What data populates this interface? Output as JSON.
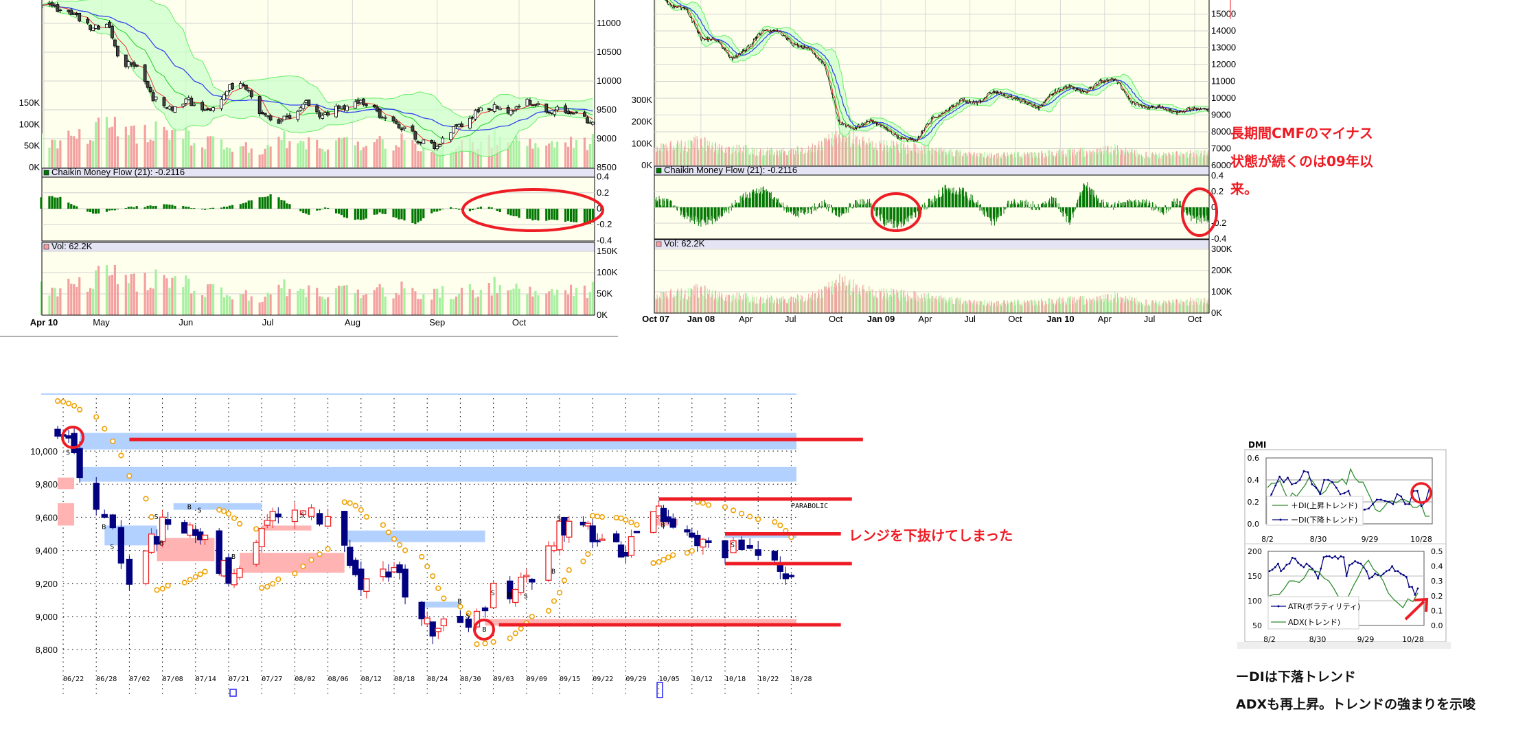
{
  "colors": {
    "annotation_red": "#ee1c24",
    "cmf_green": "#007700",
    "vol_up": "#a6f0a0",
    "vol_down": "#f4a0a0",
    "panel_bg": "#ffffee",
    "header_bg": "#e4e4f4",
    "band_green": "#ccffcc",
    "ma_red": "#ee3333",
    "ma_green": "#22cc22",
    "ma_blue": "#3344ee",
    "candle_down_navy": "#000080",
    "sar_orange": "#f0a000",
    "zone_blue": "#b3d1ff",
    "zone_pink": "#ffb3b3"
  },
  "annotations": {
    "cmf_note": [
      "長期間CMFのマイナス",
      "状態が続くのは09年以",
      "来。"
    ],
    "range_note": "レンジを下抜けてしまった",
    "dmi_note_1": "ーDIは下落トレンド",
    "dmi_note_2": "ADXも再上昇。トレンドの強まりを示唆"
  },
  "chart_data": [
    {
      "type": "candlestick",
      "panel": "6-month daily",
      "cmf_header": "Chaikin Money Flow (21): -0.2116",
      "vol_header": "Vol: 62.2K",
      "x_ticks": [
        "Apr 10",
        "May",
        "Jun",
        "Jul",
        "Aug",
        "Sep",
        "Oct"
      ],
      "x_tick_dates": [
        "2010-04-10",
        "2010-05-01",
        "2010-06-01",
        "2010-07-01",
        "2010-08-01",
        "2010-09-01",
        "2010-10-01"
      ],
      "price_ticks": [
        "11000",
        "10500",
        "10000",
        "9500",
        "9000",
        "8500"
      ],
      "overlay_vol_ticks": [
        "150K",
        "100K",
        "50K",
        "0K"
      ],
      "cmf_ticks": [
        "0.4",
        "0.2",
        "0",
        "-0.2",
        "-0.4"
      ],
      "vol_ticks": [
        "150K",
        "100K",
        "50K",
        "0K"
      ],
      "price_range": [
        8500,
        11400
      ],
      "close_path": [
        [
          "2010-04-12",
          11300
        ],
        [
          "2010-04-20",
          11200
        ],
        [
          "2010-04-27",
          10900
        ],
        [
          "2010-05-04",
          10950
        ],
        [
          "2010-05-07",
          10400
        ],
        [
          "2010-05-14",
          10200
        ],
        [
          "2010-05-20",
          9700
        ],
        [
          "2010-05-26",
          9500
        ],
        [
          "2010-06-01",
          9700
        ],
        [
          "2010-06-08",
          9450
        ],
        [
          "2010-06-15",
          9800
        ],
        [
          "2010-06-21",
          10000
        ],
        [
          "2010-06-25",
          9700
        ],
        [
          "2010-06-30",
          9350
        ],
        [
          "2010-07-05",
          9250
        ],
        [
          "2010-07-09",
          9400
        ],
        [
          "2010-07-15",
          9650
        ],
        [
          "2010-07-20",
          9350
        ],
        [
          "2010-07-26",
          9500
        ],
        [
          "2010-08-03",
          9650
        ],
        [
          "2010-08-09",
          9550
        ],
        [
          "2010-08-13",
          9300
        ],
        [
          "2010-08-20",
          9200
        ],
        [
          "2010-08-26",
          8950
        ],
        [
          "2010-08-31",
          8850
        ],
        [
          "2010-09-06",
          9150
        ],
        [
          "2010-09-10",
          9200
        ],
        [
          "2010-09-15",
          9450
        ],
        [
          "2010-09-22",
          9550
        ],
        [
          "2010-09-29",
          9450
        ],
        [
          "2010-10-05",
          9650
        ],
        [
          "2010-10-12",
          9500
        ],
        [
          "2010-10-20",
          9450
        ],
        [
          "2010-10-28",
          9250
        ]
      ],
      "cmf_weekly": [
        0.15,
        0.15,
        0.02,
        -0.07,
        -0.02,
        0.02,
        0.03,
        0.05,
        0.03,
        -0.01,
        0.01,
        0.05,
        0.12,
        0.18,
        0.05,
        -0.08,
        0.02,
        -0.1,
        -0.15,
        -0.05,
        -0.12,
        -0.2,
        -0.05,
        0.02,
        -0.04,
        0.05,
        -0.06,
        -0.12,
        -0.15,
        -0.14,
        -0.17,
        -0.18
      ],
      "cmf_last": -0.2116,
      "volume_weekly_k": [
        60,
        65,
        70,
        90,
        100,
        80,
        85,
        70,
        70,
        60,
        50,
        45,
        40,
        70,
        60,
        50,
        55,
        50,
        60,
        60,
        45,
        50,
        55,
        60,
        70,
        65,
        60,
        50,
        55,
        60
      ],
      "volume_last_k": 62.2
    },
    {
      "type": "line",
      "panel": "3-year daily",
      "cmf_header": "Chaikin Money Flow (21): -0.2116",
      "vol_header": "Vol: 62.2K",
      "x_ticks": [
        "Oct 07",
        "Jan 08",
        "Apr",
        "Jul",
        "Oct",
        "Jan 09",
        "Apr",
        "Jul",
        "Oct",
        "Jan 10",
        "Apr",
        "Jul",
        "Oct"
      ],
      "x_tick_dates": [
        "2007-10-01",
        "2008-01-01",
        "2008-04-01",
        "2008-07-01",
        "2008-10-01",
        "2009-01-01",
        "2009-04-01",
        "2009-07-01",
        "2009-10-01",
        "2010-01-01",
        "2010-04-01",
        "2010-07-01",
        "2010-10-01"
      ],
      "price_ticks": [
        "15000",
        "14000",
        "13000",
        "12000",
        "11000",
        "10000",
        "9000",
        "8000",
        "7000",
        "6000"
      ],
      "overlay_vol_ticks": [
        "300K",
        "200K",
        "100K",
        "0K"
      ],
      "cmf_ticks": [
        "0.4",
        "0.2",
        "0",
        "-0.2",
        "-0.4"
      ],
      "vol_ticks": [
        "300K",
        "200K",
        "100K",
        "0K"
      ],
      "price_range": [
        6000,
        15800
      ],
      "close_monthly": [
        16500,
        15500,
        15300,
        13500,
        13500,
        12300,
        13000,
        14000,
        14000,
        13200,
        13000,
        12000,
        8500,
        8200,
        8700,
        8200,
        7600,
        7500,
        8800,
        9300,
        9900,
        9700,
        10400,
        10100,
        9800,
        9400,
        10400,
        10700,
        10300,
        11000,
        11100,
        9800,
        9400,
        9500,
        9100,
        9400,
        9300
      ],
      "cmf_monthly": [
        0.1,
        0.05,
        -0.1,
        -0.2,
        -0.15,
        0,
        0.15,
        0.22,
        0.1,
        -0.1,
        -0.05,
        0.05,
        -0.1,
        0.05,
        0.05,
        -0.2,
        -0.22,
        -0.1,
        0.08,
        0.25,
        0.2,
        0.05,
        -0.2,
        0.05,
        0.05,
        0,
        0.1,
        -0.2,
        0.3,
        0.05,
        0.02,
        0.05,
        0.05,
        -0.05,
        0.08,
        -0.15,
        -0.15
      ],
      "volume_monthly_k": [
        70,
        85,
        90,
        110,
        80,
        75,
        70,
        65,
        60,
        65,
        70,
        95,
        140,
        120,
        100,
        90,
        85,
        80,
        70,
        60,
        55,
        50,
        45,
        45,
        50,
        50,
        55,
        60,
        60,
        65,
        75,
        60,
        50,
        45,
        50,
        55,
        55
      ]
    },
    {
      "type": "candlestick",
      "panel": "daily with parabolic SAR",
      "sar_label": "PARABOLIC",
      "y_ticks": [
        "10,000",
        "9,800",
        "9,600",
        "9,400",
        "9,200",
        "9,000",
        "8,800"
      ],
      "y_tick_values": [
        10000,
        9800,
        9600,
        9400,
        9200,
        9000,
        8800
      ],
      "x_ticks": [
        "06/22",
        "06/28",
        "07/02",
        "07/08",
        "07/14",
        "07/21",
        "07/27",
        "08/02",
        "08/06",
        "08/12",
        "08/18",
        "08/24",
        "08/30",
        "09/03",
        "09/09",
        "09/15",
        "09/22",
        "09/29",
        "10/05",
        "10/12",
        "10/18",
        "10/22",
        "10/28"
      ],
      "close_path": [
        10100,
        9700,
        9250,
        9550,
        9500,
        9250,
        9550,
        9600,
        9600,
        9200,
        9250,
        8950,
        8900,
        9150,
        9200,
        9550,
        9500,
        9400,
        9600,
        9450,
        9420,
        9400,
        9200
      ],
      "zones": [
        {
          "color": "blue",
          "from": "06/25",
          "to": "10/29",
          "lo": 10010,
          "hi": 10110
        },
        {
          "color": "blue",
          "from": "06/25",
          "to": "10/29",
          "lo": 9815,
          "hi": 9905
        },
        {
          "color": "pink",
          "from": "06/21",
          "to": "06/24",
          "lo": 9770,
          "hi": 9840
        },
        {
          "color": "pink",
          "from": "06/21",
          "to": "06/24",
          "lo": 9550,
          "hi": 9685
        },
        {
          "color": "blue",
          "from": "06/29",
          "to": "07/07",
          "lo": 9430,
          "hi": 9550
        },
        {
          "color": "pink",
          "from": "07/07",
          "to": "07/18",
          "lo": 9335,
          "hi": 9475
        },
        {
          "color": "blue",
          "from": "07/10",
          "to": "07/27",
          "lo": 9645,
          "hi": 9685
        },
        {
          "color": "pink",
          "from": "07/23",
          "to": "08/09",
          "lo": 9265,
          "hi": 9385
        },
        {
          "color": "pink",
          "from": "07/27",
          "to": "08/04",
          "lo": 9520,
          "hi": 9550
        },
        {
          "color": "blue",
          "from": "08/09",
          "to": "09/02",
          "lo": 9450,
          "hi": 9520
        },
        {
          "color": "blue",
          "from": "08/23",
          "to": "08/30",
          "lo": 9055,
          "hi": 9090
        },
        {
          "color": "pink",
          "from": "09/02",
          "to": "10/29",
          "lo": 8945,
          "hi": 8985
        },
        {
          "color": "pink",
          "from": "10/04",
          "to": "10/09",
          "lo": 9550,
          "hi": 9590
        },
        {
          "color": "blue",
          "from": "10/18",
          "to": "10/29",
          "lo": 9475,
          "hi": 9505
        }
      ],
      "signals": [
        {
          "date": "06/23",
          "type": "S",
          "price": 10000
        },
        {
          "date": "06/29",
          "type": "B",
          "price": 9550
        },
        {
          "date": "06/30",
          "type": "S",
          "price": 9430
        },
        {
          "date": "07/07",
          "type": "S",
          "price": 9610
        },
        {
          "date": "07/08",
          "type": "B",
          "price": 9450
        },
        {
          "date": "07/13",
          "type": "B",
          "price": 9670
        },
        {
          "date": "07/15",
          "type": "S",
          "price": 9650
        },
        {
          "date": "07/22",
          "type": "B",
          "price": 9370
        },
        {
          "date": "08/03",
          "type": "S",
          "price": 9620
        },
        {
          "date": "08/30",
          "type": "B",
          "price": 9100
        },
        {
          "date": "08/31",
          "type": "S",
          "price": 9010
        },
        {
          "date": "09/02",
          "type": "B",
          "price": 8930
        },
        {
          "date": "09/03",
          "type": "S",
          "price": 9150
        },
        {
          "date": "09/06",
          "type": "B",
          "price": 9140
        },
        {
          "date": "09/09",
          "type": "S",
          "price": 9130
        },
        {
          "date": "09/14",
          "type": "B",
          "price": 9280
        },
        {
          "date": "09/15",
          "type": "S",
          "price": 9600
        },
        {
          "date": "10/06",
          "type": "B",
          "price": 9560
        },
        {
          "date": "10/19",
          "type": "S",
          "price": 9440
        }
      ],
      "resistance_support_lines": [
        {
          "from": "07/02",
          "to": "11/10",
          "price": 10070
        },
        {
          "from": "10/05",
          "to": "11/08",
          "price": 9710
        },
        {
          "from": "10/18",
          "to": "11/06",
          "price": 9500
        },
        {
          "from": "10/18",
          "to": "11/08",
          "price": 9320
        },
        {
          "from": "09/04",
          "to": "11/06",
          "price": 8950
        }
      ]
    },
    {
      "type": "line",
      "panel": "DMI",
      "title": "DMI",
      "top": {
        "y_ticks": [
          "0.6",
          "0.4",
          "0.2",
          "0.0"
        ],
        "y_range": [
          0,
          0.6
        ],
        "x_ticks": [
          "8/2",
          "8/30",
          "9/29",
          "10/28"
        ],
        "series": [
          {
            "name": "＋DI(上昇トレンド)",
            "color": "#2e8b2e",
            "values": [
              0.33,
              0.37,
              0.37,
              0.39,
              0.3,
              0.22,
              0.28,
              0.25,
              0.3,
              0.35,
              0.42,
              0.38,
              0.32,
              0.27,
              0.3,
              0.37,
              0.38,
              0.38,
              0.41,
              0.36,
              0.5,
              0.42,
              0.38,
              0.38,
              0.3,
              0.22,
              0.13,
              0.11,
              0.15,
              0.2,
              0.21,
              0.19,
              0.22,
              0.22,
              0.2,
              0.15,
              0.15,
              0.18,
              0.07,
              0.07
            ]
          },
          {
            "name": "ーDI(下降トレンド)",
            "color": "#000080",
            "values": [
              0.2,
              0.27,
              0.35,
              0.43,
              0.38,
              0.42,
              0.36,
              0.37,
              0.4,
              0.48,
              0.47,
              0.36,
              0.33,
              0.27,
              0.4,
              0.4,
              0.38,
              0.33,
              0.27,
              0.28,
              0.3,
              0.2,
              0.15,
              0.12,
              0.13,
              0.14,
              0.18,
              0.22,
              0.22,
              0.21,
              0.2,
              0.18,
              0.27,
              0.25,
              0.18,
              0.18,
              0.3,
              0.3,
              0.16,
              0.2,
              0.33
            ]
          }
        ]
      },
      "bottom": {
        "y_ticks_left": [
          "200",
          "150",
          "100",
          "50"
        ],
        "y_range_left": [
          50,
          200
        ],
        "y_ticks_right": [
          "0.5",
          "0.4",
          "0.3",
          "0.2",
          "0.1",
          "0.0"
        ],
        "y_range_right": [
          0,
          0.5
        ],
        "x_ticks": [
          "8/2",
          "8/30",
          "9/29",
          "10/28"
        ],
        "series": [
          {
            "name": "ATR(ボラティリティ)",
            "color": "#000080",
            "axis": "left",
            "values": [
              160,
              163,
              168,
              175,
              160,
              165,
              173,
              175,
              187,
              185,
              177,
              172,
              168,
              175,
              170,
              165,
              158,
              145,
              165,
              188,
              190,
              190,
              187,
              190,
              185,
              190,
              188,
              150,
              172,
              175,
              180,
              177,
              175,
              168,
              160,
              145,
              148,
              155,
              152,
              150,
              155,
              160,
              162,
              170,
              160,
              160,
              155,
              152,
              148,
              128,
              128,
              112,
              125
            ]
          },
          {
            "name": "ADX(トレンド)",
            "color": "#2e8b2e",
            "axis": "right",
            "values": [
              0.2,
              0.21,
              0.21,
              0.25,
              0.3,
              0.3,
              0.29,
              0.32,
              0.38,
              0.37,
              0.36,
              0.32,
              0.3,
              0.25,
              0.19,
              0.17,
              0.2,
              0.27,
              0.33,
              0.4,
              0.44,
              0.38,
              0.35,
              0.3,
              0.22,
              0.18,
              0.15,
              0.12,
              0.18,
              0.16,
              0.22
            ]
          }
        ]
      }
    }
  ]
}
